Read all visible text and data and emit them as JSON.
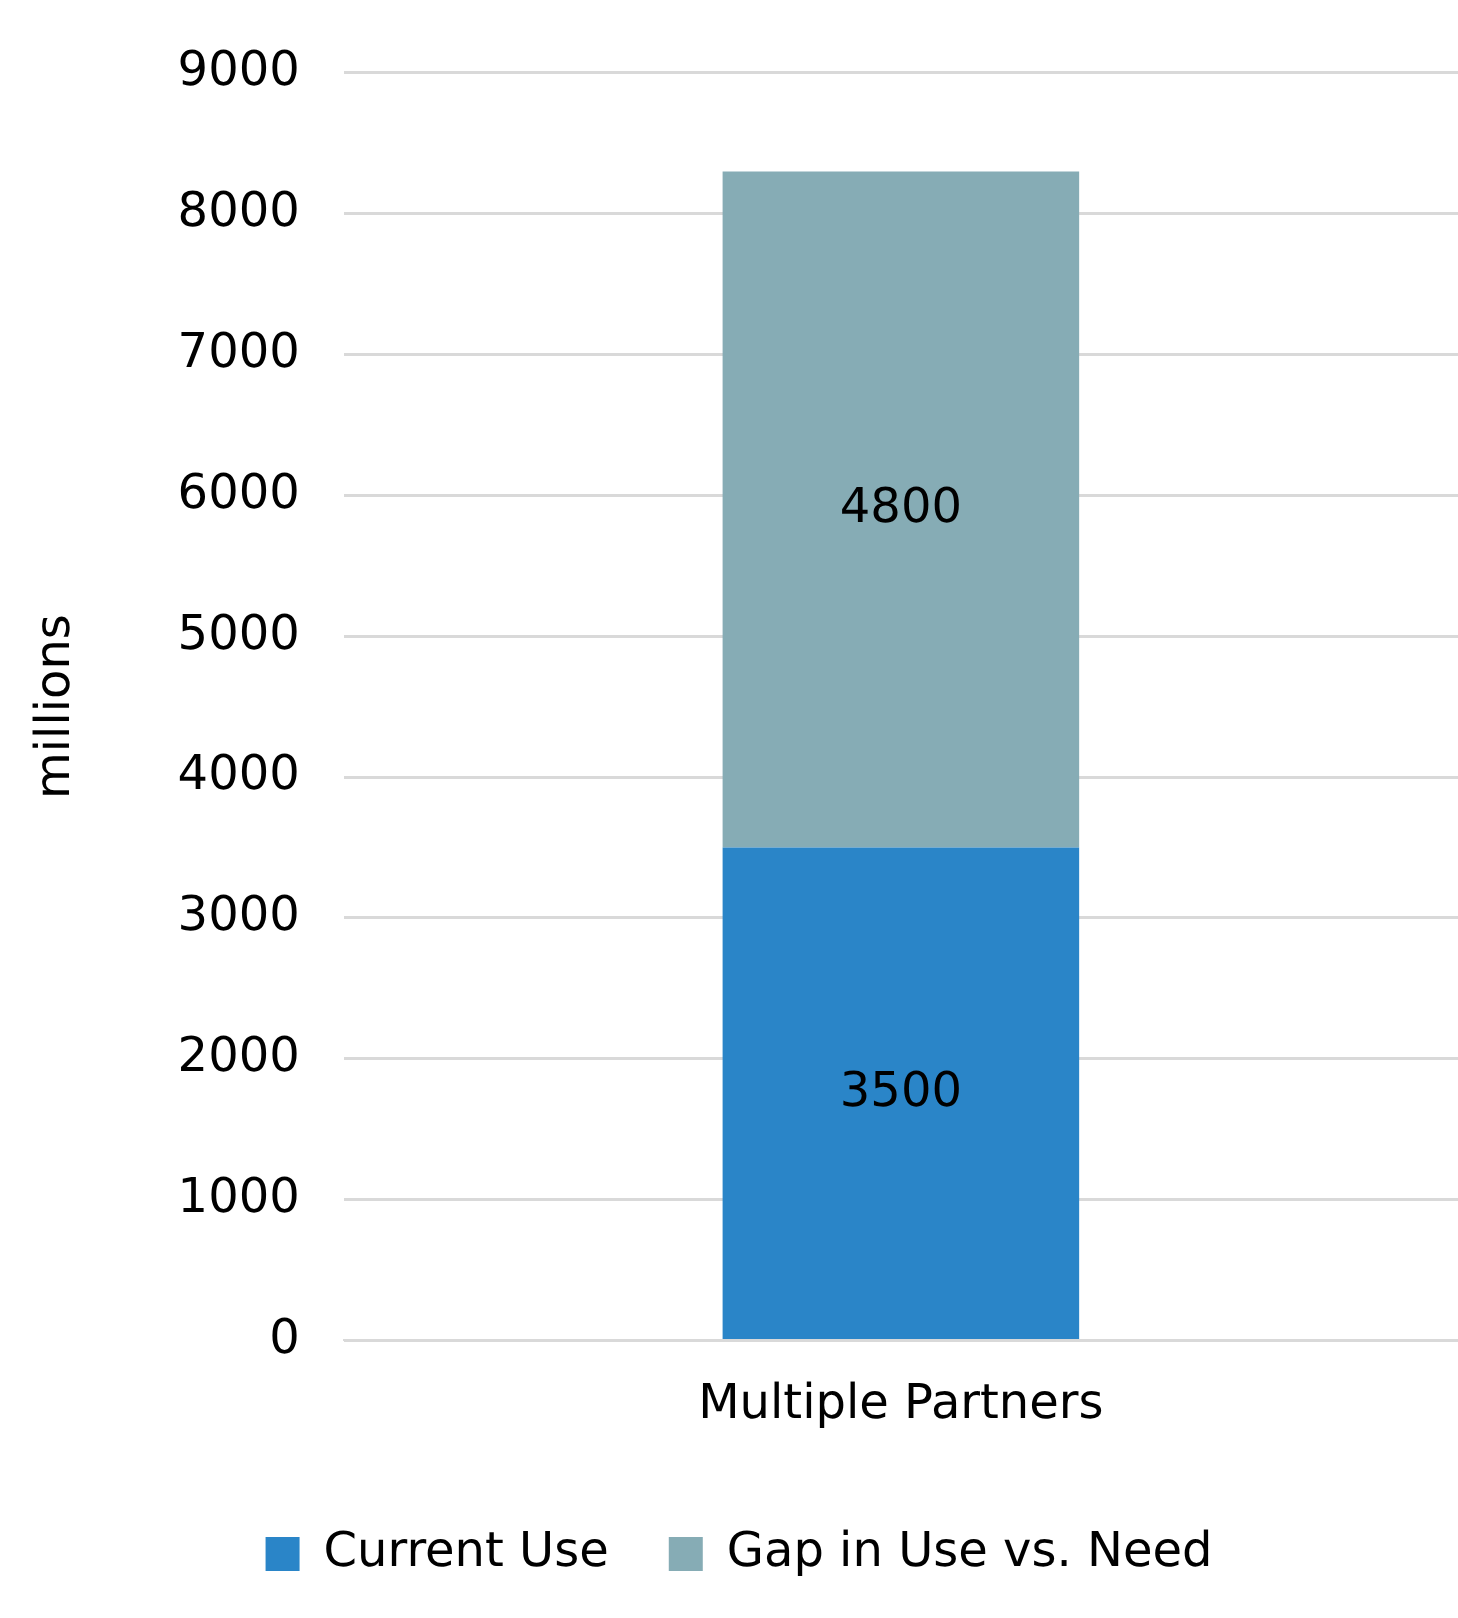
{
  "chart_data": {
    "type": "bar",
    "ylabel": "millions",
    "categories": [
      "Multiple Partners"
    ],
    "stacked": true,
    "series": [
      {
        "name": "Current Use",
        "color": "#2a85c8",
        "values": [
          3500
        ]
      },
      {
        "name": "Gap in Use vs. Need",
        "color": "#86acb5",
        "values": [
          4800
        ]
      }
    ],
    "ylim": [
      0,
      9000
    ],
    "yticks": [
      0,
      1000,
      2000,
      3000,
      4000,
      5000,
      6000,
      7000,
      8000,
      9000
    ],
    "grid": "y",
    "legend": "bottom",
    "data_labels": true
  }
}
